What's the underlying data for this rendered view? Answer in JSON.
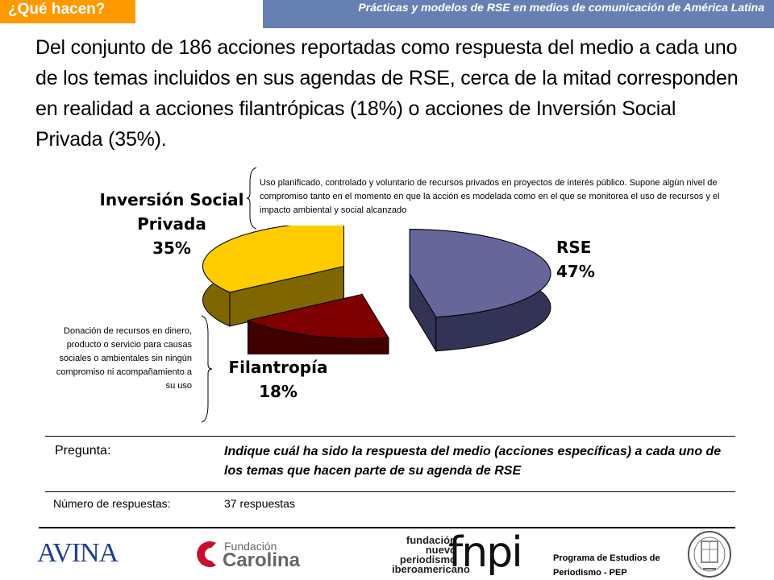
{
  "header": {
    "section_title": "¿Qué hacen?",
    "report_title": "Prácticas y modelos de RSE en medios de comunicación de América Latina"
  },
  "lead_text": "Del conjunto de 186 acciones reportadas como respuesta del medio a cada uno de los temas incluidos en sus agendas de RSE, cerca de la mitad corresponden en realidad a acciones filantrópicas (18%) o acciones de Inversión Social Privada (35%).",
  "definitions": {
    "isp": "Uso planificado, controlado y voluntario de recursos privados en proyectos de interés público. Supone algún nivel de  compromiso tanto en el momento en que la acción es modelada como en el que se monitorea el uso de recursos y el impacto ambiental y social alcanzado",
    "filantropia": "Donación de recursos en dinero, producto o servicio para causas sociales o ambientales sin ningún compromiso ni acompañamiento a su uso"
  },
  "chart_data": {
    "type": "pie",
    "style": "3d-exploded",
    "slices": [
      {
        "label": "RSE",
        "value": 47,
        "display": "47%",
        "color": "#66669a",
        "side_color": "#333355"
      },
      {
        "label": "Filantropía",
        "value": 18,
        "display": "18%",
        "color": "#7f0000",
        "side_color": "#3f0000"
      },
      {
        "label": "Inversión Social Privada",
        "value": 35,
        "display": "35%",
        "color": "#ffcc00",
        "side_color": "#7f6600"
      }
    ]
  },
  "labels": {
    "isp_line1": "Inversión Social",
    "isp_line2": "Privada",
    "isp_pct": "35%",
    "rse": "RSE",
    "rse_pct": "47%",
    "fil": "Filantropía",
    "fil_pct": "18%"
  },
  "question": {
    "label": "Pregunta:",
    "text": "Indique cuál ha sido la respuesta del medio (acciones específicas) a cada uno de los temas que hacen parte de su agenda de RSE"
  },
  "responses": {
    "label": "Número de respuestas:",
    "value": "37 respuestas"
  },
  "footer": {
    "avina": "AVINA",
    "carolina_fund": "Fundación",
    "carolina_name": "Carolina",
    "fnpi_small": "fundación nuevo periodismo iberoamericano",
    "fnpi_big": "fnpi",
    "pep": "Programa de Estudios de Periodismo - PEP"
  }
}
